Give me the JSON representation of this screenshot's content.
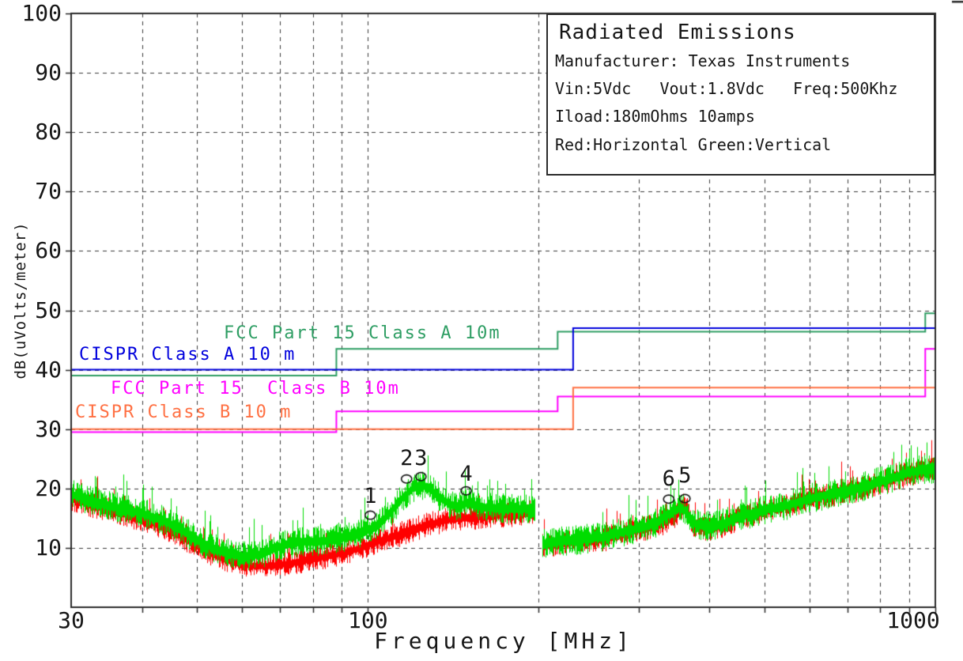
{
  "page": {
    "background": "#ffffff",
    "text_color": "#161616"
  },
  "infobox": {
    "title": "Radiated Emissions",
    "lines": [
      "Manufacturer: Texas Instruments",
      "Vin:5Vdc   Vout:1.8Vdc   Freq:500Khz",
      "Iload:180mOhms 10amps",
      "Red:Horizontal Green:Vertical"
    ]
  },
  "axes": {
    "x": {
      "label": "Frequency [MHz]",
      "scale": "log",
      "min": 30,
      "max": 1000,
      "ticks": [
        30,
        100,
        1000
      ],
      "minor_ticks": [
        40,
        50,
        60,
        70,
        80,
        90,
        100,
        200,
        300,
        400,
        500,
        600,
        700,
        800,
        900,
        1000
      ]
    },
    "y": {
      "label": "dB(uVolts/meter)",
      "min": 0,
      "max": 100,
      "ticks": [
        100,
        90,
        80,
        70,
        60,
        50,
        40,
        30,
        20,
        10
      ]
    }
  },
  "chart_data": {
    "type": "line",
    "title": "Radiated Emissions",
    "xlabel": "Frequency [MHz]",
    "ylabel": "dB(uVolts/meter)",
    "xscale": "log",
    "xlim": [
      30,
      1000
    ],
    "ylim": [
      0,
      100
    ],
    "grid": "dashed",
    "limits": [
      {
        "name": "FCC Part 15 Class A 10m",
        "color": "#2f9e64",
        "points": [
          [
            30,
            39
          ],
          [
            88,
            39
          ],
          [
            88,
            43.5
          ],
          [
            216,
            43.5
          ],
          [
            216,
            46.4
          ],
          [
            960,
            46.4
          ],
          [
            960,
            49.5
          ],
          [
            1000,
            49.5
          ]
        ]
      },
      {
        "name": "CISPR Class A 10 m",
        "color": "#0000dd",
        "points": [
          [
            30,
            40
          ],
          [
            230,
            40
          ],
          [
            230,
            47
          ],
          [
            1000,
            47
          ]
        ]
      },
      {
        "name": "FCC Part 15  Class B 10m",
        "color": "#ff00ff",
        "points": [
          [
            30,
            29.5
          ],
          [
            88,
            29.5
          ],
          [
            88,
            33
          ],
          [
            216,
            33
          ],
          [
            216,
            35.5
          ],
          [
            960,
            35.5
          ],
          [
            960,
            43.5
          ],
          [
            1000,
            43.5
          ]
        ]
      },
      {
        "name": "CISPR Class B 10 m",
        "color": "#ff7043",
        "points": [
          [
            30,
            30
          ],
          [
            230,
            30
          ],
          [
            230,
            37
          ],
          [
            1000,
            37
          ]
        ]
      }
    ],
    "series": [
      {
        "name": "Horizontal",
        "color": "#ff0000",
        "gap_mhz": [
          197,
          203
        ],
        "envelope": [
          [
            30,
            18.5
          ],
          [
            33,
            17.2
          ],
          [
            36,
            16.2
          ],
          [
            40,
            15
          ],
          [
            44,
            13.5
          ],
          [
            48,
            11.5
          ],
          [
            52,
            9.5
          ],
          [
            56,
            8.2
          ],
          [
            60,
            7.4
          ],
          [
            64,
            7.1
          ],
          [
            68,
            7.2
          ],
          [
            72,
            7.5
          ],
          [
            76,
            7.9
          ],
          [
            80,
            8.3
          ],
          [
            85,
            8.8
          ],
          [
            90,
            9.3
          ],
          [
            95,
            9.9
          ],
          [
            100,
            10.7
          ],
          [
            105,
            11.4
          ],
          [
            110,
            12
          ],
          [
            115,
            12.6
          ],
          [
            120,
            13.2
          ],
          [
            125,
            13.8
          ],
          [
            130,
            14.3
          ],
          [
            135,
            14.7
          ],
          [
            140,
            15
          ],
          [
            150,
            15.3
          ],
          [
            160,
            15.4
          ],
          [
            170,
            15.6
          ],
          [
            180,
            15.8
          ],
          [
            190,
            16.1
          ],
          [
            197,
            16.3
          ],
          [
            203,
            10.8
          ],
          [
            210,
            10.8
          ],
          [
            220,
            11
          ],
          [
            240,
            11.2
          ],
          [
            260,
            11.6
          ],
          [
            290,
            13
          ],
          [
            320,
            13.8
          ],
          [
            335,
            14.6
          ],
          [
            348,
            15.5
          ],
          [
            356,
            16.5
          ],
          [
            360,
            18
          ],
          [
            364,
            16.8
          ],
          [
            372,
            14.4
          ],
          [
            382,
            13.6
          ],
          [
            395,
            13.4
          ],
          [
            420,
            13.8
          ],
          [
            450,
            15.2
          ],
          [
            500,
            16.4
          ],
          [
            550,
            17.2
          ],
          [
            600,
            18.3
          ],
          [
            650,
            19
          ],
          [
            700,
            19.6
          ],
          [
            750,
            20.3
          ],
          [
            800,
            21.2
          ],
          [
            850,
            21.9
          ],
          [
            900,
            22.7
          ],
          [
            950,
            23.2
          ],
          [
            1000,
            23.5
          ]
        ]
      },
      {
        "name": "Vertical",
        "color": "#00dd00",
        "gap_mhz": [
          197,
          203
        ],
        "envelope": [
          [
            30,
            19.2
          ],
          [
            33,
            18
          ],
          [
            36,
            17
          ],
          [
            40,
            16
          ],
          [
            44,
            14.6
          ],
          [
            48,
            12.6
          ],
          [
            52,
            10.6
          ],
          [
            56,
            9.4
          ],
          [
            60,
            8.7
          ],
          [
            64,
            9
          ],
          [
            68,
            10
          ],
          [
            72,
            10.8
          ],
          [
            76,
            11.2
          ],
          [
            80,
            11.2
          ],
          [
            85,
            11.4
          ],
          [
            90,
            11.9
          ],
          [
            95,
            12.4
          ],
          [
            100,
            13.2
          ],
          [
            105,
            14.4
          ],
          [
            110,
            16.4
          ],
          [
            115,
            18.6
          ],
          [
            120,
            20.3
          ],
          [
            124,
            20.8
          ],
          [
            128,
            20.2
          ],
          [
            132,
            19.2
          ],
          [
            136,
            18.2
          ],
          [
            140,
            17.4
          ],
          [
            145,
            17.2
          ],
          [
            150,
            17.8
          ],
          [
            155,
            17.4
          ],
          [
            160,
            17
          ],
          [
            170,
            16.8
          ],
          [
            180,
            16.8
          ],
          [
            190,
            16.8
          ],
          [
            197,
            16.8
          ],
          [
            203,
            11
          ],
          [
            210,
            11
          ],
          [
            220,
            11.3
          ],
          [
            240,
            11.6
          ],
          [
            260,
            12
          ],
          [
            290,
            13.2
          ],
          [
            320,
            14.2
          ],
          [
            335,
            15.6
          ],
          [
            345,
            16.4
          ],
          [
            355,
            16.9
          ],
          [
            362,
            16.4
          ],
          [
            372,
            14.8
          ],
          [
            382,
            14
          ],
          [
            395,
            13.8
          ],
          [
            420,
            14.2
          ],
          [
            450,
            15.4
          ],
          [
            500,
            16.6
          ],
          [
            550,
            17.4
          ],
          [
            600,
            18.5
          ],
          [
            650,
            19.2
          ],
          [
            700,
            19.8
          ],
          [
            750,
            20.5
          ],
          [
            800,
            21.4
          ],
          [
            850,
            22.1
          ],
          [
            900,
            22.9
          ],
          [
            950,
            23.3
          ],
          [
            1000,
            23.4
          ]
        ]
      }
    ],
    "markers": [
      {
        "id": "1",
        "freq_mhz": 101,
        "level_db": 15.5
      },
      {
        "id": "2",
        "freq_mhz": 117,
        "level_db": 21.6
      },
      {
        "id": "3",
        "freq_mhz": 124,
        "level_db": 22.0
      },
      {
        "id": "4",
        "freq_mhz": 149,
        "level_db": 19.6
      },
      {
        "id": "5",
        "freq_mhz": 362,
        "level_db": 18.3
      },
      {
        "id": "6",
        "freq_mhz": 339,
        "level_db": 18.2
      }
    ]
  }
}
